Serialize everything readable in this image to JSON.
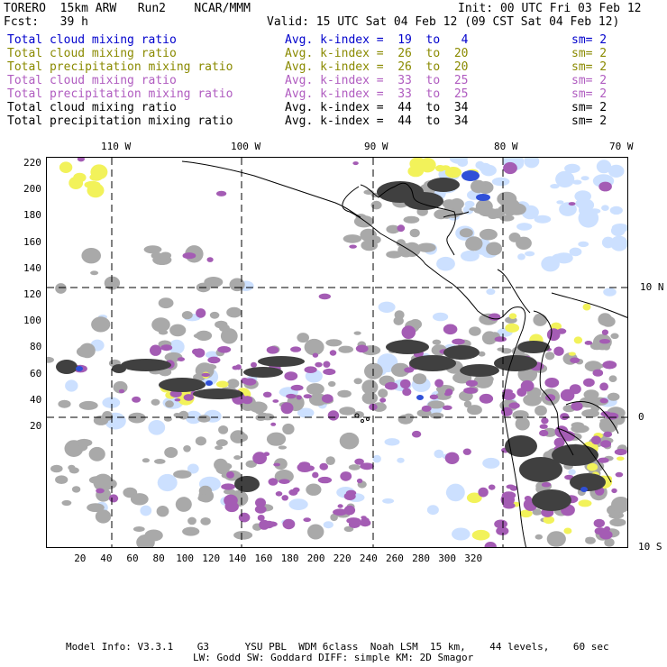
{
  "header": {
    "title_left": "TORERO  15km ARW   Run2    NCAR/MMM",
    "init": "Init: 00 UTC Fri 03 Feb 12",
    "fcst": "Fcst:   39 h",
    "valid": "Valid: 15 UTC Sat 04 Feb 12 (09 CST Sat 04 Feb 12)"
  },
  "legend": [
    {
      "field": "Total cloud mixing ratio",
      "avg": "Avg. k-index =  19  to   4",
      "sm": "sm= 2",
      "color": "#0000cc"
    },
    {
      "field": "Total cloud mixing ratio",
      "avg": "Avg. k-index =  26  to  20",
      "sm": "sm= 2",
      "color": "#8a8a00"
    },
    {
      "field": "Total precipitation mixing ratio",
      "avg": "Avg. k-index =  26  to  20",
      "sm": "sm= 2",
      "color": "#8a8a00"
    },
    {
      "field": "Total cloud mixing ratio",
      "avg": "Avg. k-index =  33  to  25",
      "sm": "sm= 2",
      "color": "#b05cc0"
    },
    {
      "field": "Total precipitation mixing ratio",
      "avg": "Avg. k-index =  33  to  25",
      "sm": "sm= 2",
      "color": "#b05cc0"
    },
    {
      "field": "Total cloud mixing ratio",
      "avg": "Avg. k-index =  44  to  34",
      "sm": "sm= 2",
      "color": "#000000"
    },
    {
      "field": "Total precipitation mixing ratio",
      "avg": "Avg. k-index =  44  to  34",
      "sm": "sm= 2",
      "color": "#000000"
    }
  ],
  "axes": {
    "lon_labels": [
      "110 W",
      "100 W",
      "90 W",
      "80 W",
      "70 W"
    ],
    "lat_labels": [
      "10 N",
      "0",
      "10 S"
    ],
    "y_ticks": [
      "220",
      "200",
      "180",
      "160",
      "140",
      "120",
      "100",
      "80",
      "60",
      "40",
      "20"
    ],
    "x_ticks": [
      "20",
      "40",
      "60",
      "80",
      "100",
      "120",
      "140",
      "160",
      "180",
      "200",
      "220",
      "240",
      "260",
      "280",
      "300",
      "320"
    ]
  },
  "footer": {
    "line1": "Model Info: V3.3.1    G3      YSU PBL  WDM 6class  Noah LSM  15 km,    44 levels,    60 sec",
    "line2": "LW: Godd SW: Goddard DIFF: simple KM: 2D Smagor"
  },
  "colors": {
    "gray": "#a9a9a9",
    "dark": "#404040",
    "purple": "#a45cb4",
    "yellow": "#f2f25a",
    "lightblue": "#cce0ff",
    "blue": "#3050d8"
  }
}
